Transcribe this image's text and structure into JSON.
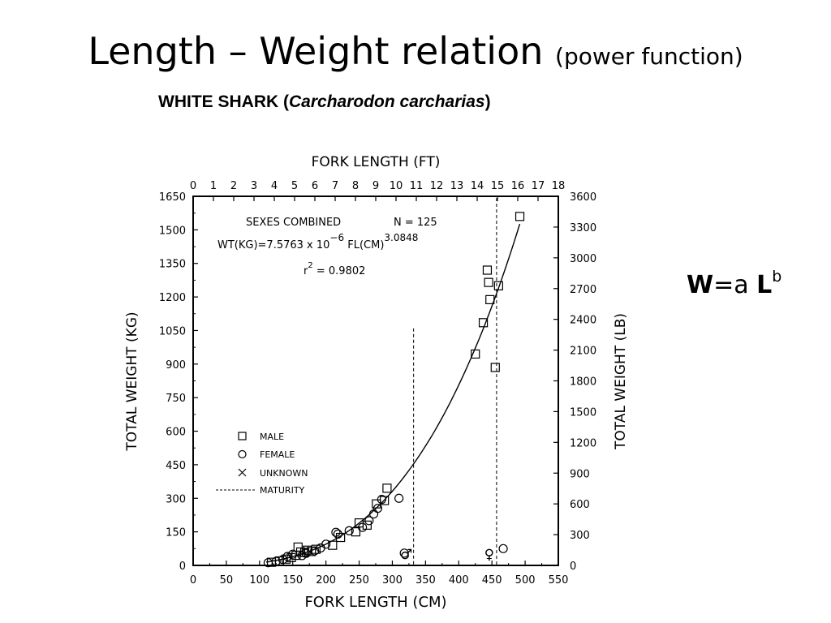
{
  "slide": {
    "title": "Length – Weight relation",
    "subtitle": "(power function)",
    "formula": {
      "w": "W",
      "eq": "=a ",
      "l": "L",
      "exp": "b"
    }
  },
  "chart_data": {
    "type": "scatter",
    "title_prefix": "WHITE SHARK (",
    "title_species": "Carcharodon carcharias",
    "title_suffix": ")",
    "xlabel": "FORK LENGTH (CM)",
    "x2label": "FORK LENGTH (FT)",
    "ylabel": "TOTAL WEIGHT (KG)",
    "y2label": "TOTAL WEIGHT (LB)",
    "xlim": [
      0,
      550
    ],
    "ylim": [
      0,
      1650
    ],
    "x_ticks": [
      0,
      50,
      100,
      150,
      200,
      250,
      300,
      350,
      400,
      450,
      500,
      550
    ],
    "y_ticks": [
      0,
      150,
      300,
      450,
      600,
      750,
      900,
      1050,
      1200,
      1350,
      1500,
      1650
    ],
    "x2_ticks": [
      0,
      1,
      2,
      3,
      4,
      5,
      6,
      7,
      8,
      9,
      10,
      11,
      12,
      13,
      14,
      15,
      16,
      17,
      18
    ],
    "y2_ticks": [
      0,
      300,
      600,
      900,
      1200,
      1500,
      1800,
      2100,
      2400,
      2700,
      3000,
      3300,
      3600
    ],
    "annotations": {
      "group": "SEXES COMBINED",
      "n": "N = 125",
      "eq_main": "WT(KG)=7.5763 x 10",
      "eq_exp1": "−6",
      "eq_mid": " FL(CM)",
      "eq_exp2": "3.0848",
      "r2_r": "r",
      "r2_sup": "2",
      "r2_val": " = 0.9802"
    },
    "fit": {
      "a": 7.5763e-06,
      "b": 3.0848,
      "x_range": [
        110,
        492
      ]
    },
    "maturity": [
      {
        "sex": "male",
        "x": 332,
        "symbol": "♂"
      },
      {
        "sex": "female",
        "x": 457,
        "symbol": "♀"
      }
    ],
    "legend": {
      "position": "bottom-left",
      "items": [
        {
          "marker": "square",
          "label": "MALE"
        },
        {
          "marker": "circle",
          "label": "FEMALE"
        },
        {
          "marker": "x",
          "label": "UNKNOWN"
        },
        {
          "marker": "dashed-line",
          "label": "MATURITY"
        }
      ]
    },
    "series": [
      {
        "name": "MALE",
        "marker": "square",
        "points": [
          [
            118,
            14
          ],
          [
            130,
            20
          ],
          [
            140,
            28
          ],
          [
            148,
            35
          ],
          [
            155,
            45
          ],
          [
            158,
            82
          ],
          [
            162,
            60
          ],
          [
            168,
            58
          ],
          [
            172,
            68
          ],
          [
            178,
            62
          ],
          [
            185,
            72
          ],
          [
            210,
            90
          ],
          [
            222,
            125
          ],
          [
            245,
            150
          ],
          [
            250,
            190
          ],
          [
            262,
            180
          ],
          [
            276,
            275
          ],
          [
            288,
            290
          ],
          [
            292,
            345
          ],
          [
            425,
            945
          ],
          [
            437,
            1085
          ],
          [
            443,
            1320
          ],
          [
            445,
            1265
          ],
          [
            447,
            1188
          ],
          [
            455,
            885
          ],
          [
            460,
            1250
          ],
          [
            492,
            1560
          ]
        ]
      },
      {
        "name": "FEMALE",
        "marker": "circle",
        "points": [
          [
            113,
            12
          ],
          [
            125,
            18
          ],
          [
            135,
            26
          ],
          [
            142,
            40
          ],
          [
            150,
            50
          ],
          [
            164,
            44
          ],
          [
            170,
            54
          ],
          [
            183,
            65
          ],
          [
            192,
            78
          ],
          [
            200,
            95
          ],
          [
            215,
            148
          ],
          [
            218,
            140
          ],
          [
            235,
            155
          ],
          [
            255,
            170
          ],
          [
            265,
            200
          ],
          [
            272,
            230
          ],
          [
            278,
            255
          ],
          [
            284,
            295
          ],
          [
            310,
            300
          ],
          [
            318,
            55
          ],
          [
            467,
            75
          ]
        ]
      }
    ]
  }
}
